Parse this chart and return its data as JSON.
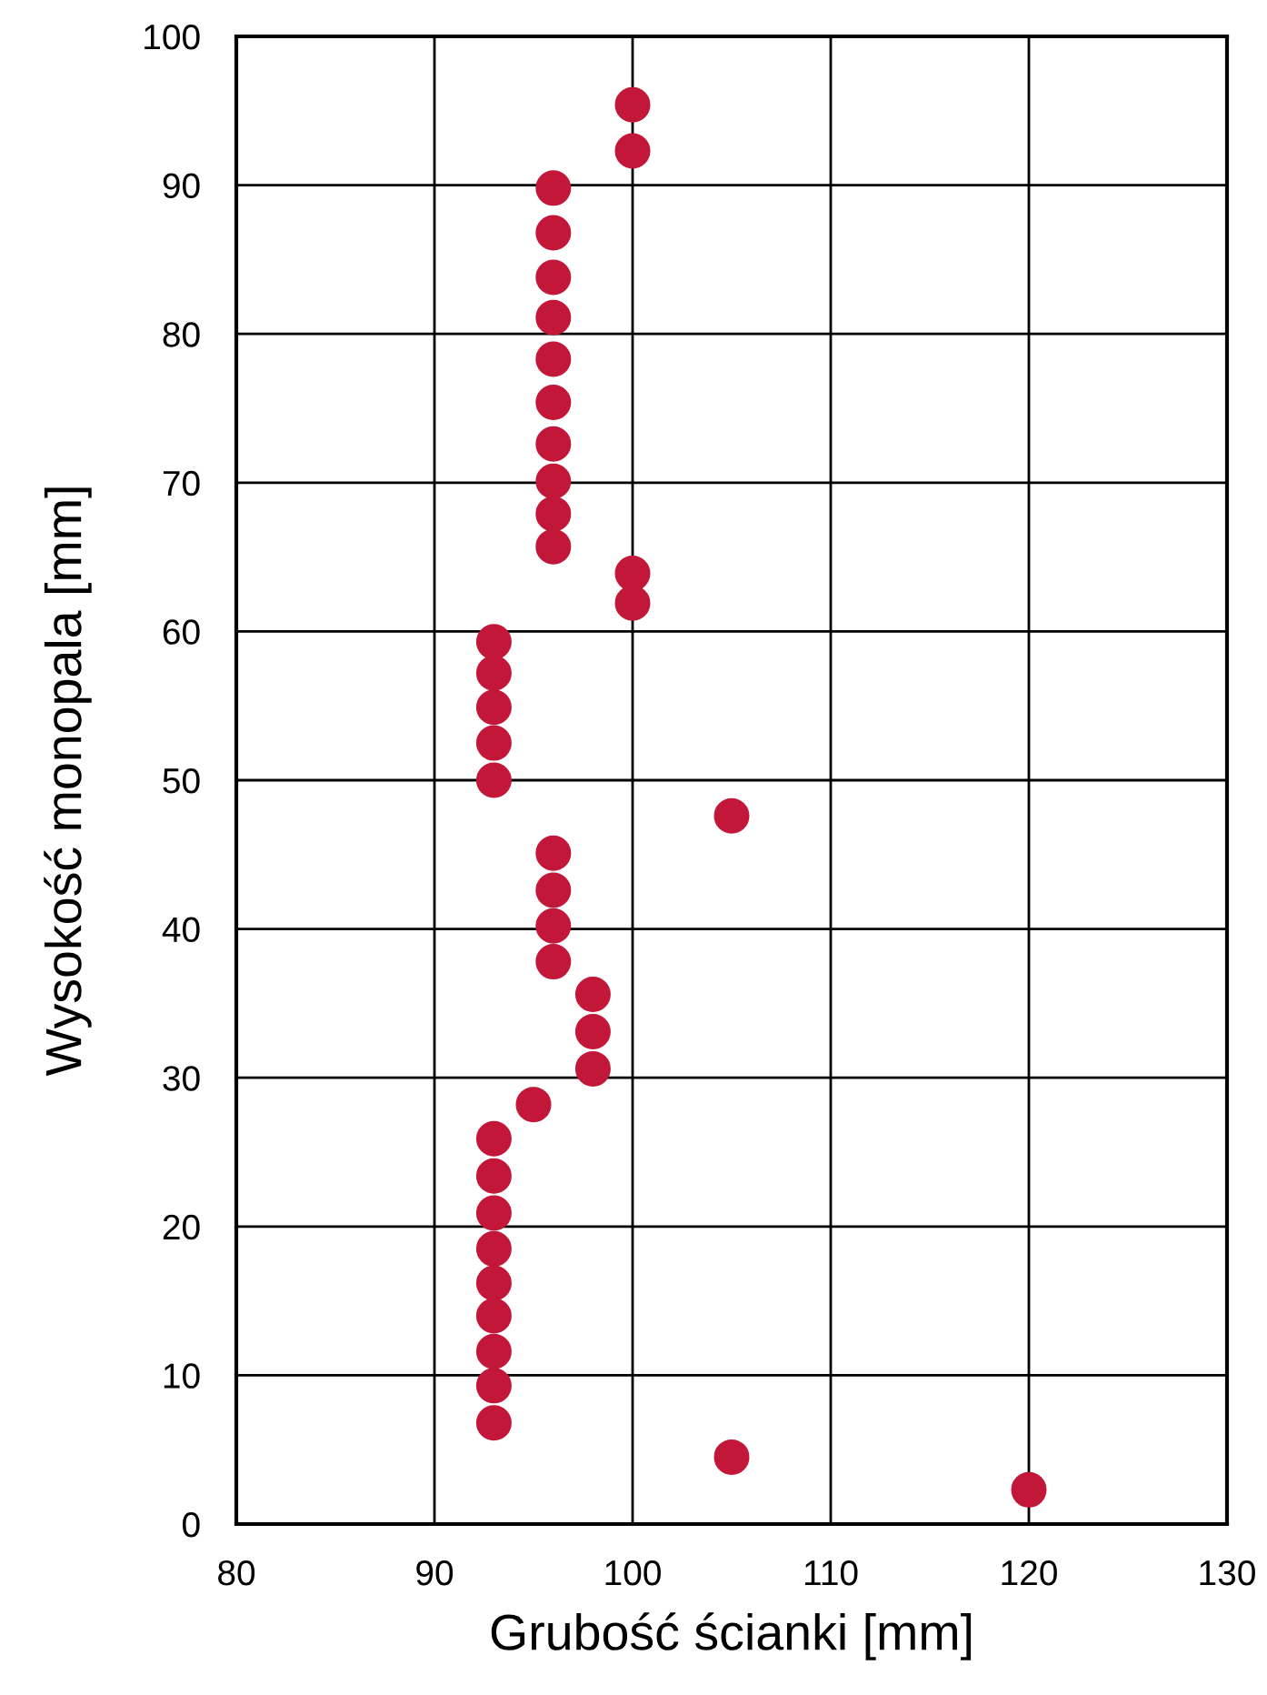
{
  "chart_data": {
    "type": "scatter",
    "xlabel": "Grubość ścianki [mm]",
    "ylabel": "Wysokość monopala [mm]",
    "x": [
      100,
      100,
      96,
      96,
      96,
      96,
      96,
      96,
      96,
      96,
      96,
      96,
      100,
      100,
      93,
      93,
      93,
      93,
      93,
      105,
      96,
      96,
      96,
      96,
      98,
      98,
      98,
      95,
      93,
      93,
      93,
      93,
      93,
      93,
      93,
      93,
      93,
      105,
      120
    ],
    "series": [
      {
        "color": "#c3173a",
        "values": [
          95.4,
          92.3,
          89.8,
          86.8,
          83.8,
          81.1,
          78.3,
          75.4,
          72.6,
          70.1,
          67.9,
          65.7,
          63.9,
          61.9,
          59.3,
          57.2,
          54.9,
          52.5,
          50,
          47.6,
          45.1,
          42.6,
          40.2,
          37.8,
          35.6,
          33.1,
          30.6,
          28.2,
          25.9,
          23.4,
          20.9,
          18.5,
          16.2,
          14,
          11.6,
          9.3,
          6.8,
          4.5,
          2.3
        ]
      }
    ],
    "xlim": [
      80,
      130
    ],
    "ylim": [
      0,
      100
    ],
    "xticks": [
      80,
      90,
      100,
      110,
      120,
      130
    ],
    "yticks": [
      0,
      10,
      20,
      30,
      40,
      50,
      60,
      70,
      80,
      90,
      100
    ],
    "grid": true,
    "marker": "circle"
  }
}
